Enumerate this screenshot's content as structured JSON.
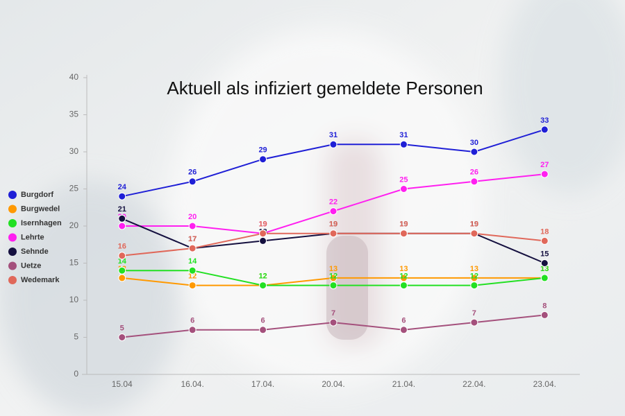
{
  "chart_data": {
    "type": "line",
    "title": "Aktuell als infiziert gemeldete Personen",
    "categories": [
      "15.04",
      "16.04.",
      "17.04.",
      "20.04.",
      "21.04.",
      "22.04.",
      "23.04."
    ],
    "ylim": [
      0,
      40
    ],
    "yticks": [
      0,
      5,
      10,
      15,
      20,
      25,
      30,
      35,
      40
    ],
    "legend": "left",
    "series": [
      {
        "name": "Burgdorf",
        "color": "#1f1fd6",
        "values": [
          24,
          26,
          29,
          31,
          31,
          30,
          33
        ]
      },
      {
        "name": "Burgwedel",
        "color": "#ff9900",
        "values": [
          13,
          12,
          12,
          13,
          13,
          13,
          13
        ]
      },
      {
        "name": "Isernhagen",
        "color": "#22e022",
        "values": [
          14,
          14,
          12,
          12,
          12,
          12,
          13
        ]
      },
      {
        "name": "Lehrte",
        "color": "#ff1ff0",
        "values": [
          20,
          20,
          19,
          22,
          25,
          26,
          27
        ]
      },
      {
        "name": "Sehnde",
        "color": "#15103f",
        "values": [
          21,
          17,
          18,
          19,
          19,
          19,
          15
        ]
      },
      {
        "name": "Uetze",
        "color": "#a4507c",
        "values": [
          5,
          6,
          6,
          7,
          6,
          7,
          8
        ]
      },
      {
        "name": "Wedemark",
        "color": "#e0685a",
        "values": [
          16,
          17,
          19,
          19,
          19,
          19,
          18
        ]
      }
    ]
  }
}
